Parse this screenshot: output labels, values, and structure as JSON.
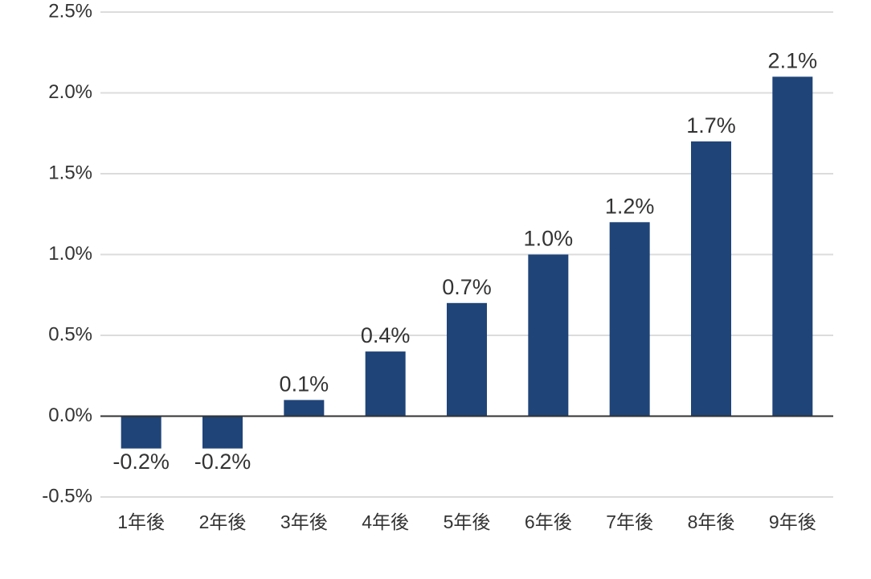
{
  "chart_data": {
    "type": "bar",
    "categories": [
      "1年後",
      "2年後",
      "3年後",
      "4年後",
      "5年後",
      "6年後",
      "7年後",
      "8年後",
      "9年後"
    ],
    "values": [
      -0.2,
      -0.2,
      0.1,
      0.4,
      0.7,
      1.0,
      1.2,
      1.7,
      2.1
    ],
    "value_labels": [
      "-0.2%",
      "-0.2%",
      "0.1%",
      "0.4%",
      "0.7%",
      "1.0%",
      "1.2%",
      "1.7%",
      "2.1%"
    ],
    "color": "#1f4478",
    "ylim": [
      -0.5,
      2.5
    ],
    "yticks": [
      {
        "value": -0.5,
        "label": "-0.5%"
      },
      {
        "value": 0,
        "label": "0.0%"
      },
      {
        "value": 0.5,
        "label": "0.5%"
      },
      {
        "value": 1.0,
        "label": "1.0%"
      },
      {
        "value": 1.5,
        "label": "1.5%"
      },
      {
        "value": 2.0,
        "label": "2.0%"
      },
      {
        "value": 2.5,
        "label": "2.5%"
      }
    ],
    "grid": true
  }
}
